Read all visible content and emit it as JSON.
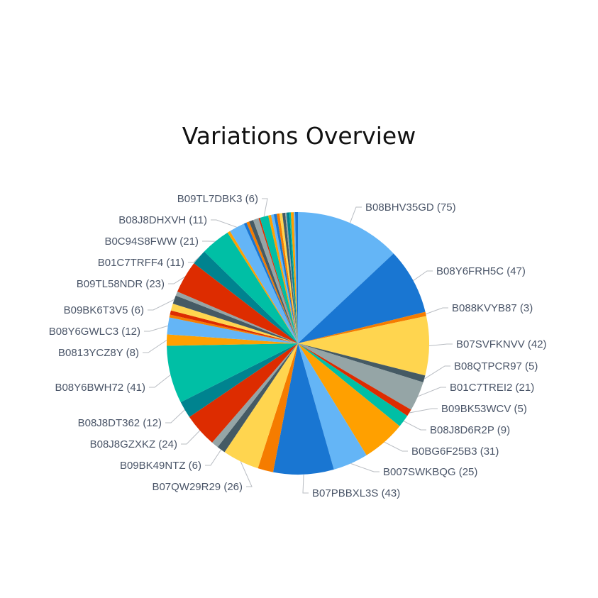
{
  "chart_data": {
    "type": "pie",
    "title": "Variations Overview",
    "labeled_slices": [
      {
        "label": "B08BHV35GD (75)",
        "name": "B08BHV35GD",
        "value": 75,
        "color": "#64b5f6"
      },
      {
        "label": "B08Y6FRH5C (47)",
        "name": "B08Y6FRH5C",
        "value": 47,
        "color": "#1976d2"
      },
      {
        "label": "B088KVYB87 (3)",
        "name": "B088KVYB87",
        "value": 3,
        "color": "#f57c00"
      },
      {
        "label": "B07SVFKNVV (42)",
        "name": "B07SVFKNVV",
        "value": 42,
        "color": "#ffd54f"
      },
      {
        "label": "B08QTPCR97 (5)",
        "name": "B08QTPCR97",
        "value": 5,
        "color": "#455a64"
      },
      {
        "label": "B01C7TREI2 (21)",
        "name": "B01C7TREI2",
        "value": 21,
        "color": "#95a5a6"
      },
      {
        "label": "B09BK53WCV (5)",
        "name": "B09BK53WCV",
        "value": 5,
        "color": "#dd2c00"
      },
      {
        "label": "B08J8D6R2P (9)",
        "name": "B08J8D6R2P",
        "value": 9,
        "color": "#00bfa5"
      },
      {
        "label": "B0BG6F25B3 (31)",
        "name": "B0BG6F25B3",
        "value": 31,
        "color": "#ffa000"
      },
      {
        "label": "B007SWKBQG (25)",
        "name": "B007SWKBQG",
        "value": 25,
        "color": "#64b5f6"
      },
      {
        "label": "B07PBBXL3S (43)",
        "name": "B07PBBXL3S",
        "value": 43,
        "color": "#1976d2"
      },
      {
        "label": "",
        "name": "",
        "value": 11,
        "color": "#f57c00"
      },
      {
        "label": "B07QW29R29 (26)",
        "name": "B07QW29R29",
        "value": 26,
        "color": "#ffd54f"
      },
      {
        "label": "B09BK49NTZ (6)",
        "name": "B09BK49NTZ",
        "value": 6,
        "color": "#455a64"
      },
      {
        "label": "",
        "name": "",
        "value": 5,
        "color": "#95a5a6"
      },
      {
        "label": "B08J8GZXKZ (24)",
        "name": "B08J8GZXKZ",
        "value": 24,
        "color": "#dd2c00"
      },
      {
        "label": "B08J8DT362 (12)",
        "name": "B08J8DT362",
        "value": 12,
        "color": "#00838f"
      },
      {
        "label": "B08Y6BWH72 (41)",
        "name": "B08Y6BWH72",
        "value": 41,
        "color": "#00bfa5"
      },
      {
        "label": "B0813YCZ8Y (8)",
        "name": "B0813YCZ8Y",
        "value": 8,
        "color": "#ffa000"
      },
      {
        "label": "B08Y6GWLC3 (12)",
        "name": "B08Y6GWLC3",
        "value": 12,
        "color": "#64b5f6"
      },
      {
        "label": "",
        "name": "",
        "value": 2,
        "color": "#f57c00"
      },
      {
        "label": "",
        "name": "",
        "value": 3,
        "color": "#dd2c00"
      },
      {
        "label": "",
        "name": "",
        "value": 5,
        "color": "#ffd54f"
      },
      {
        "label": "B09BK6T3V5 (6)",
        "name": "B09BK6T3V5",
        "value": 6,
        "color": "#455a64"
      },
      {
        "label": "",
        "name": "",
        "value": 3,
        "color": "#95a5a6"
      },
      {
        "label": "B09TL58NDR (23)",
        "name": "B09TL58NDR",
        "value": 23,
        "color": "#dd2c00"
      },
      {
        "label": "B01C7TRFF4 (11)",
        "name": "B01C7TRFF4",
        "value": 11,
        "color": "#00838f"
      },
      {
        "label": "B0C94S8FWW (21)",
        "name": "B0C94S8FWW",
        "value": 21,
        "color": "#00bfa5"
      },
      {
        "label": "",
        "name": "",
        "value": 2,
        "color": "#ffa000"
      },
      {
        "label": "B08J8DHXVH (11)",
        "name": "B08J8DHXVH",
        "value": 11,
        "color": "#64b5f6"
      },
      {
        "label": "",
        "name": "",
        "value": 2,
        "color": "#1976d2"
      },
      {
        "label": "",
        "name": "",
        "value": 2,
        "color": "#f57c00"
      },
      {
        "label": "",
        "name": "",
        "value": 3,
        "color": "#455a64"
      },
      {
        "label": "",
        "name": "",
        "value": 4,
        "color": "#95a5a6"
      },
      {
        "label": "",
        "name": "",
        "value": 1,
        "color": "#dd2c00"
      },
      {
        "label": "B09TL7DBK3 (6)",
        "name": "B09TL7DBK3",
        "value": 6,
        "color": "#00bfa5"
      },
      {
        "label": "",
        "name": "",
        "value": 2,
        "color": "#ffa000"
      },
      {
        "label": "",
        "name": "",
        "value": 2,
        "color": "#64b5f6"
      },
      {
        "label": "",
        "name": "",
        "value": 2,
        "color": "#1976d2"
      },
      {
        "label": "",
        "name": "",
        "value": 2,
        "color": "#f57c00"
      },
      {
        "label": "",
        "name": "",
        "value": 2,
        "color": "#ffd54f"
      },
      {
        "label": "",
        "name": "",
        "value": 2,
        "color": "#455a64"
      },
      {
        "label": "",
        "name": "",
        "value": 1,
        "color": "#95a5a6"
      },
      {
        "label": "",
        "name": "",
        "value": 2,
        "color": "#00838f"
      },
      {
        "label": "",
        "name": "",
        "value": 1,
        "color": "#00bfa5"
      },
      {
        "label": "",
        "name": "",
        "value": 2,
        "color": "#ffa000"
      },
      {
        "label": "",
        "name": "",
        "value": 1,
        "color": "#64b5f6"
      },
      {
        "label": "",
        "name": "",
        "value": 2,
        "color": "#1976d2"
      }
    ],
    "legend": "none",
    "label_text_color": "#4a5568",
    "leader_line_color": "#b8bcc2"
  }
}
